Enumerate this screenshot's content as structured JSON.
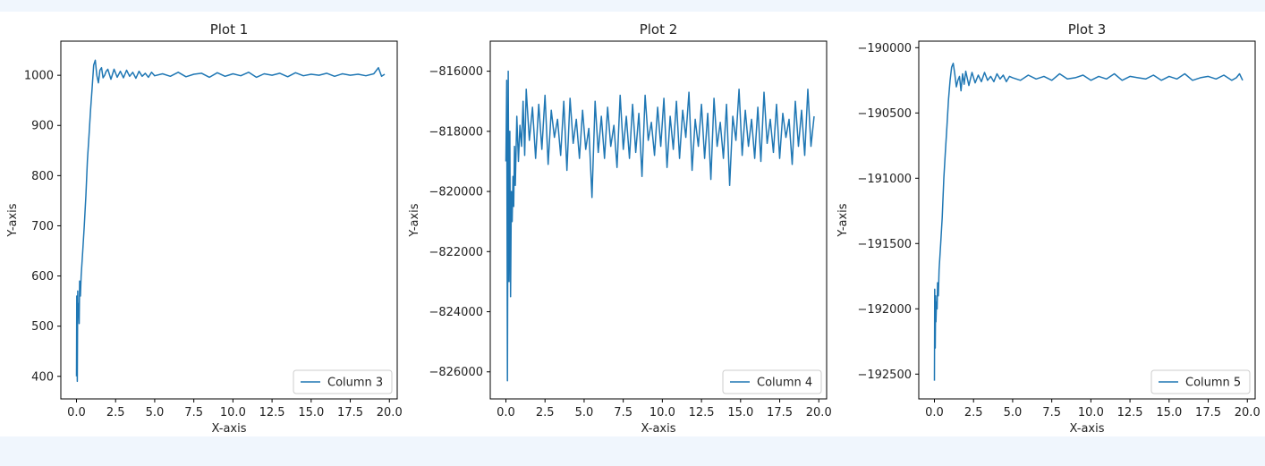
{
  "chart_data": [
    {
      "type": "line",
      "title": "Plot 1",
      "xlabel": "X-axis",
      "ylabel": "Y-axis",
      "xlim": [
        -1.0,
        20.5
      ],
      "ylim": [
        355,
        1068
      ],
      "xticks": [
        "0.0",
        "2.5",
        "5.0",
        "7.5",
        "10.0",
        "12.5",
        "15.0",
        "17.5",
        "20.0"
      ],
      "yticks": [
        "400",
        "500",
        "600",
        "700",
        "800",
        "900",
        "1000"
      ],
      "legend": "lower-right",
      "grid": false,
      "color": "#1f77b4",
      "series": [
        {
          "name": "Column 3",
          "x": [
            0.0,
            0.02,
            0.05,
            0.08,
            0.1,
            0.13,
            0.17,
            0.2,
            0.25,
            0.3,
            0.4,
            0.5,
            0.6,
            0.7,
            0.8,
            0.9,
            1.0,
            1.1,
            1.2,
            1.3,
            1.4,
            1.5,
            1.6,
            1.7,
            1.8,
            1.9,
            2.0,
            2.2,
            2.4,
            2.6,
            2.8,
            3.0,
            3.2,
            3.4,
            3.6,
            3.8,
            4.0,
            4.2,
            4.4,
            4.6,
            4.8,
            5.0,
            5.5,
            6.0,
            6.5,
            7.0,
            7.5,
            8.0,
            8.5,
            9.0,
            9.5,
            10.0,
            10.5,
            11.0,
            11.5,
            12.0,
            12.5,
            13.0,
            13.5,
            14.0,
            14.5,
            15.0,
            15.5,
            16.0,
            16.5,
            17.0,
            17.5,
            18.0,
            18.5,
            19.0,
            19.3,
            19.5,
            19.7
          ],
          "y": [
            400,
            560,
            390,
            570,
            520,
            545,
            505,
            590,
            560,
            600,
            650,
            700,
            760,
            830,
            880,
            930,
            975,
            1020,
            1030,
            1000,
            985,
            1010,
            1015,
            995,
            1000,
            1008,
            1012,
            992,
            1012,
            996,
            1008,
            995,
            1010,
            998,
            1006,
            994,
            1008,
            998,
            1004,
            996,
            1006,
            999,
            1003,
            998,
            1006,
            997,
            1002,
            1004,
            996,
            1005,
            998,
            1003,
            999,
            1006,
            996,
            1003,
            1000,
            1004,
            997,
            1005,
            999,
            1002,
            1000,
            1004,
            998,
            1003,
            1000,
            1002,
            999,
            1003,
            1015,
            998,
            1002
          ]
        }
      ]
    },
    {
      "type": "line",
      "title": "Plot 2",
      "xlabel": "X-axis",
      "ylabel": "Y-axis",
      "xlim": [
        -1.0,
        20.5
      ],
      "ylim": [
        -826900,
        -815000
      ],
      "xticks": [
        "0.0",
        "2.5",
        "5.0",
        "7.5",
        "10.0",
        "12.5",
        "15.0",
        "17.5",
        "20.0"
      ],
      "yticks": [
        "−826000",
        "−824000",
        "−822000",
        "−820000",
        "−818000",
        "−816000"
      ],
      "legend": "lower-right",
      "grid": false,
      "color": "#1f77b4",
      "series": [
        {
          "name": "Column 4",
          "x": [
            0.0,
            0.05,
            0.1,
            0.15,
            0.2,
            0.25,
            0.3,
            0.35,
            0.4,
            0.45,
            0.5,
            0.55,
            0.6,
            0.7,
            0.8,
            0.9,
            1.0,
            1.1,
            1.2,
            1.3,
            1.5,
            1.7,
            1.9,
            2.1,
            2.3,
            2.5,
            2.7,
            2.9,
            3.1,
            3.3,
            3.5,
            3.7,
            3.9,
            4.1,
            4.3,
            4.5,
            4.7,
            4.9,
            5.1,
            5.3,
            5.5,
            5.7,
            5.9,
            6.1,
            6.3,
            6.5,
            6.7,
            6.9,
            7.1,
            7.3,
            7.5,
            7.7,
            7.9,
            8.1,
            8.3,
            8.5,
            8.7,
            8.9,
            9.1,
            9.3,
            9.5,
            9.7,
            9.9,
            10.1,
            10.3,
            10.5,
            10.7,
            10.9,
            11.1,
            11.3,
            11.5,
            11.7,
            11.9,
            12.1,
            12.3,
            12.5,
            12.7,
            12.9,
            13.1,
            13.3,
            13.5,
            13.7,
            13.9,
            14.1,
            14.3,
            14.5,
            14.7,
            14.9,
            15.1,
            15.3,
            15.5,
            15.7,
            15.9,
            16.1,
            16.3,
            16.5,
            16.7,
            16.9,
            17.1,
            17.3,
            17.5,
            17.7,
            17.9,
            18.1,
            18.3,
            18.5,
            18.7,
            18.9,
            19.1,
            19.3,
            19.5,
            19.7
          ],
          "y": [
            -819000,
            -816300,
            -826300,
            -816000,
            -823000,
            -818000,
            -823500,
            -820000,
            -821000,
            -819500,
            -820500,
            -818500,
            -819800,
            -817500,
            -819000,
            -817800,
            -818500,
            -817000,
            -818800,
            -816600,
            -818300,
            -817200,
            -818900,
            -817100,
            -818600,
            -816800,
            -819100,
            -817300,
            -818200,
            -817600,
            -818800,
            -817000,
            -819300,
            -816900,
            -818400,
            -817600,
            -818900,
            -817300,
            -818600,
            -817900,
            -820200,
            -817000,
            -818700,
            -817500,
            -818900,
            -817200,
            -818500,
            -817800,
            -819200,
            -816800,
            -818600,
            -817500,
            -818900,
            -817100,
            -818700,
            -817400,
            -819500,
            -816800,
            -818300,
            -817700,
            -818800,
            -817200,
            -818500,
            -816900,
            -819200,
            -817500,
            -818600,
            -817000,
            -818900,
            -817300,
            -818200,
            -816700,
            -819300,
            -817600,
            -818500,
            -817100,
            -818900,
            -817400,
            -819600,
            -816900,
            -818500,
            -817700,
            -818900,
            -817100,
            -819800,
            -817500,
            -818300,
            -816600,
            -818800,
            -817300,
            -818500,
            -817600,
            -818900,
            -817200,
            -819000,
            -816700,
            -818400,
            -817600,
            -818700,
            -817100,
            -818900,
            -817400,
            -818200,
            -817600,
            -819100,
            -817000,
            -818500,
            -817300,
            -818800,
            -816600,
            -818500,
            -817500
          ]
        }
      ]
    },
    {
      "type": "line",
      "title": "Plot 3",
      "xlabel": "X-axis",
      "ylabel": "Y-axis",
      "xlim": [
        -1.0,
        20.5
      ],
      "ylim": [
        -192690,
        -189950
      ],
      "xticks": [
        "0.0",
        "2.5",
        "5.0",
        "7.5",
        "10.0",
        "12.5",
        "15.0",
        "17.5",
        "20.0"
      ],
      "yticks": [
        "−192500",
        "−192000",
        "−191500",
        "−191000",
        "−190500",
        "−190000"
      ],
      "legend": "lower-right",
      "grid": false,
      "color": "#1f77b4",
      "series": [
        {
          "name": "Column 5",
          "x": [
            0.0,
            0.02,
            0.05,
            0.08,
            0.1,
            0.13,
            0.17,
            0.2,
            0.25,
            0.3,
            0.4,
            0.5,
            0.6,
            0.7,
            0.8,
            0.9,
            1.0,
            1.1,
            1.2,
            1.3,
            1.4,
            1.5,
            1.6,
            1.7,
            1.8,
            1.9,
            2.0,
            2.2,
            2.4,
            2.6,
            2.8,
            3.0,
            3.2,
            3.4,
            3.6,
            3.8,
            4.0,
            4.2,
            4.4,
            4.6,
            4.8,
            5.0,
            5.5,
            6.0,
            6.5,
            7.0,
            7.5,
            8.0,
            8.5,
            9.0,
            9.5,
            10.0,
            10.5,
            11.0,
            11.5,
            12.0,
            12.5,
            13.0,
            13.5,
            14.0,
            14.5,
            15.0,
            15.5,
            16.0,
            16.5,
            17.0,
            17.5,
            18.0,
            18.5,
            19.0,
            19.3,
            19.5,
            19.7
          ],
          "y": [
            -192550,
            -191850,
            -192300,
            -191900,
            -192100,
            -191950,
            -192000,
            -191800,
            -191900,
            -191700,
            -191500,
            -191300,
            -191000,
            -190800,
            -190600,
            -190400,
            -190250,
            -190150,
            -190120,
            -190200,
            -190300,
            -190250,
            -190220,
            -190330,
            -190200,
            -190280,
            -190180,
            -190290,
            -190190,
            -190270,
            -190210,
            -190260,
            -190190,
            -190250,
            -190220,
            -190260,
            -190200,
            -190240,
            -190210,
            -190260,
            -190220,
            -190230,
            -190250,
            -190210,
            -190240,
            -190220,
            -190250,
            -190200,
            -190240,
            -190230,
            -190210,
            -190250,
            -190220,
            -190240,
            -190200,
            -190250,
            -190220,
            -190230,
            -190240,
            -190210,
            -190250,
            -190220,
            -190240,
            -190200,
            -190250,
            -190230,
            -190220,
            -190240,
            -190210,
            -190250,
            -190230,
            -190200,
            -190250
          ]
        }
      ]
    }
  ]
}
